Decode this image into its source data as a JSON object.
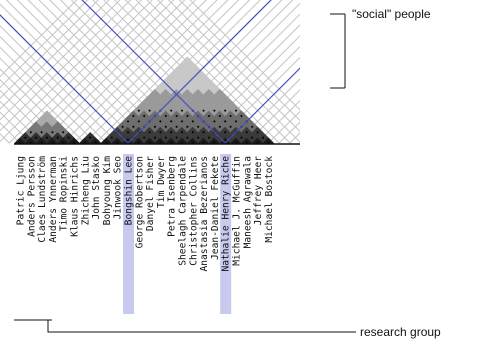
{
  "names": [
    "Patric Ljung",
    "Anders Persson",
    "Claes Lundström",
    "Anders Ynnerman",
    "Timo Ropinski",
    "Klaus Hinrichs",
    "Zhicheng Liu",
    "John Stasko",
    "Bohyoung Kim",
    "Jinwook Seo",
    "Bongshin Lee",
    "George Robertson",
    "Danyel Fisher",
    "Tim Dwyer",
    "Petra Isenberg",
    "Sheelagh Carpendale",
    "Christopher Collins",
    "Anastasia Bezerianos",
    "Jean-Daniel Fekete",
    "Nathalie Henry Riche",
    "Michael J. McGuffin",
    "Maneesh Agrawala",
    "Jeffrey Heer",
    "Michael Bostock"
  ],
  "highlighted": [
    "Bongshin Lee",
    "Nathalie Henry Riche"
  ],
  "callouts": {
    "social": "\"social\" people",
    "research": "research group"
  },
  "colors": {
    "highlight_band": "#c7c9ef",
    "path_line": "#4a4fc0",
    "grid_line": "#c4c4c4",
    "axis_line": "#111111"
  }
}
